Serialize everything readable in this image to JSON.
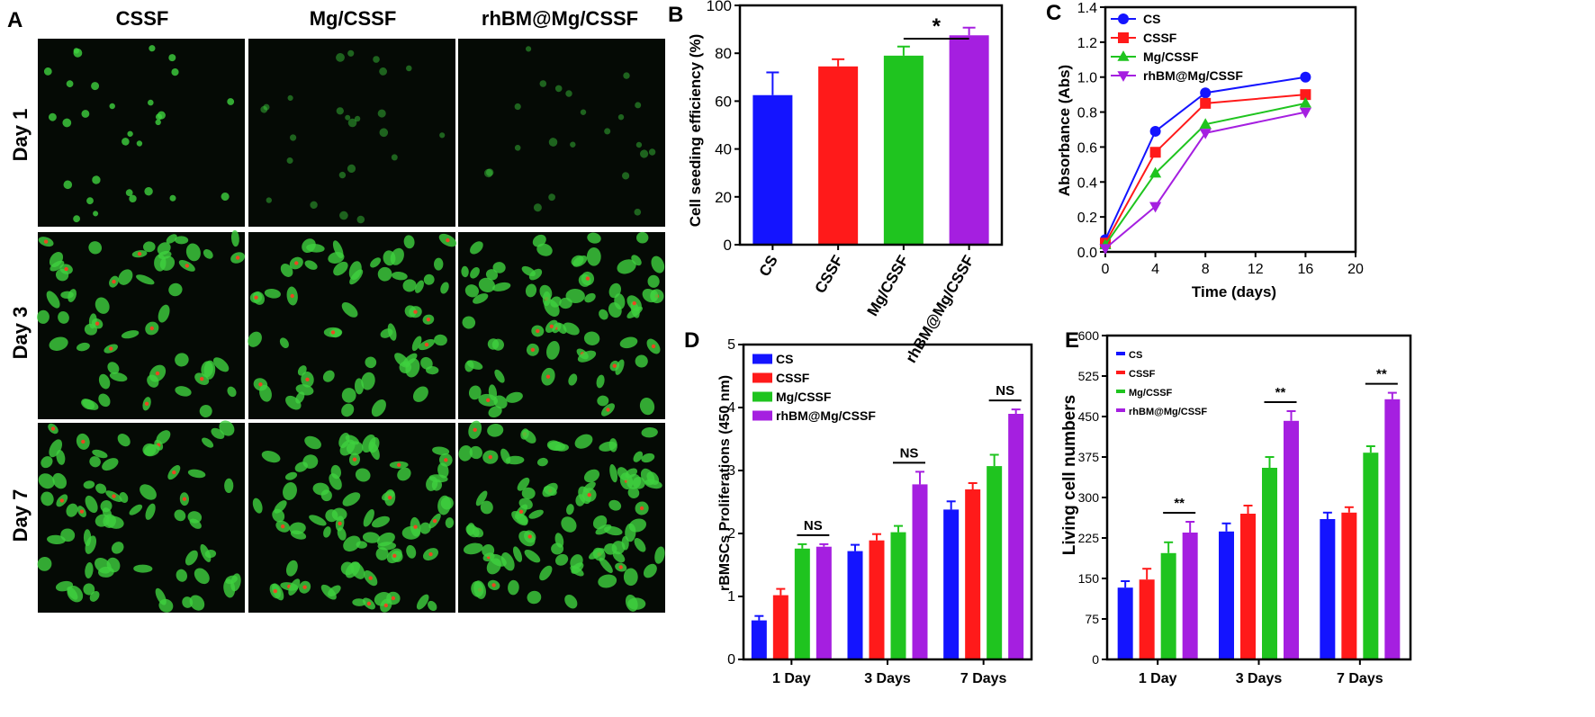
{
  "colors": {
    "CS": "#1414ff",
    "CSSF": "#ff1a1a",
    "Mg/CSSF": "#1fc41f",
    "rhBM@Mg/CSSF": "#a51fe0",
    "cell_green": "#3fd13f",
    "cell_red": "#ff3b1f",
    "micrograph_bg": "#050a05"
  },
  "panel_A": {
    "letter": "A",
    "columns": [
      "CSSF",
      "Mg/CSSF",
      "rhBM@Mg/CSSF"
    ],
    "rows": [
      "Day 1",
      "Day 3",
      "Day 7"
    ]
  },
  "chart_data": [
    {
      "id": "B",
      "letter": "B",
      "type": "bar",
      "categories": [
        "CS",
        "CSSF",
        "Mg/CSSF",
        "rhBM@Mg/CSSF"
      ],
      "values": [
        62.5,
        74.5,
        79,
        87.5
      ],
      "errors": [
        9.5,
        3,
        3.8,
        3.2
      ],
      "ylabel": "Cell seeding efficiency (%)",
      "ylim": [
        0,
        100
      ],
      "yticks": [
        0,
        20,
        40,
        60,
        80,
        100
      ],
      "significance": [
        {
          "from": 2,
          "to": 3,
          "label": "*"
        }
      ]
    },
    {
      "id": "C",
      "letter": "C",
      "type": "line",
      "xlabel": "Time (days)",
      "ylabel": "Absorbance (Abs)",
      "xlim": [
        0,
        20
      ],
      "xticks": [
        0,
        4,
        8,
        12,
        16,
        20
      ],
      "ylim": [
        0,
        1.4
      ],
      "yticks": [
        "0.0",
        "0.2",
        "0.4",
        "0.6",
        "0.8",
        "1.0",
        "1.2",
        "1.4"
      ],
      "legend_position": "top-left",
      "series": [
        {
          "name": "CS",
          "marker": "circle",
          "x": [
            0,
            4,
            8,
            16
          ],
          "y": [
            0.07,
            0.69,
            0.91,
            1.0
          ]
        },
        {
          "name": "CSSF",
          "marker": "square",
          "x": [
            0,
            4,
            8,
            16
          ],
          "y": [
            0.05,
            0.57,
            0.85,
            0.9
          ]
        },
        {
          "name": "Mg/CSSF",
          "marker": "triangle-up",
          "x": [
            0,
            4,
            8,
            16
          ],
          "y": [
            0.04,
            0.45,
            0.73,
            0.85
          ]
        },
        {
          "name": "rhBM@Mg/CSSF",
          "marker": "triangle-down",
          "x": [
            0,
            4,
            8,
            16
          ],
          "y": [
            0.02,
            0.26,
            0.68,
            0.8
          ]
        }
      ]
    },
    {
      "id": "D",
      "letter": "D",
      "type": "bar",
      "ylabel": "rBMSCs Proliferations (450 nm)",
      "ylim": [
        0,
        5
      ],
      "yticks": [
        0,
        1,
        2,
        3,
        4,
        5
      ],
      "categories": [
        "1 Day",
        "3 Days",
        "7 Days"
      ],
      "legend_position": "top-left",
      "series": [
        {
          "name": "CS",
          "values": [
            0.62,
            1.72,
            2.38
          ],
          "errors": [
            0.07,
            0.1,
            0.13
          ]
        },
        {
          "name": "CSSF",
          "values": [
            1.02,
            1.89,
            2.7
          ],
          "errors": [
            0.1,
            0.1,
            0.1
          ]
        },
        {
          "name": "Mg/CSSF",
          "values": [
            1.76,
            2.02,
            3.07
          ],
          "errors": [
            0.07,
            0.1,
            0.18
          ]
        },
        {
          "name": "rhBM@Mg/CSSF",
          "values": [
            1.79,
            2.78,
            3.9
          ],
          "errors": [
            0.04,
            0.2,
            0.07
          ]
        }
      ],
      "significance": [
        {
          "group": 0,
          "label": "NS"
        },
        {
          "group": 1,
          "label": "NS"
        },
        {
          "group": 2,
          "label": "NS"
        }
      ]
    },
    {
      "id": "E",
      "letter": "E",
      "type": "bar",
      "ylabel": "Living cell numbers",
      "ylim": [
        0,
        600
      ],
      "yticks": [
        0,
        75,
        150,
        225,
        300,
        375,
        450,
        525,
        600
      ],
      "categories": [
        "1 Day",
        "3 Days",
        "7 Days"
      ],
      "legend_position": "top-left",
      "series": [
        {
          "name": "CS",
          "values": [
            133,
            237,
            260
          ],
          "errors": [
            12,
            15,
            12
          ]
        },
        {
          "name": "CSSF",
          "values": [
            148,
            270,
            272
          ],
          "errors": [
            20,
            15,
            10
          ]
        },
        {
          "name": "Mg/CSSF",
          "values": [
            197,
            355,
            383
          ],
          "errors": [
            20,
            20,
            12
          ]
        },
        {
          "name": "rhBM@Mg/CSSF",
          "values": [
            235,
            442,
            482
          ],
          "errors": [
            20,
            18,
            12
          ]
        }
      ],
      "significance": [
        {
          "group": 0,
          "label": "**"
        },
        {
          "group": 1,
          "label": "**"
        },
        {
          "group": 2,
          "label": "**"
        }
      ]
    }
  ]
}
